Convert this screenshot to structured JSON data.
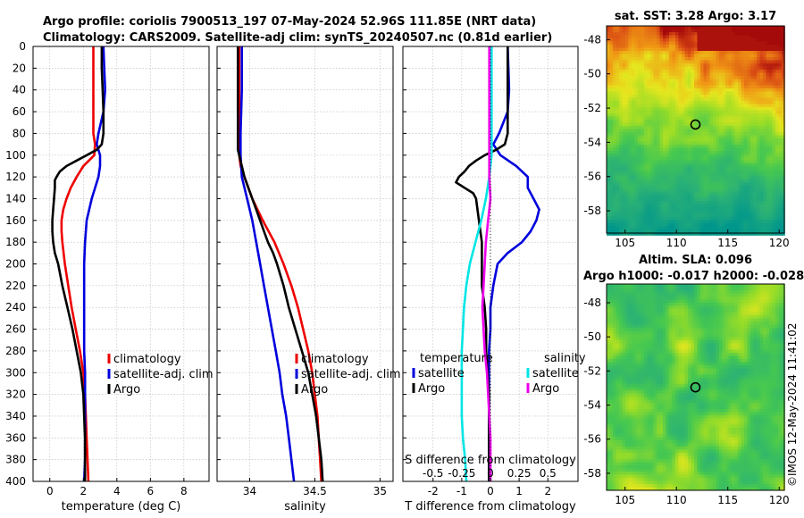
{
  "header": {
    "line1": "Argo profile: coriolis 7900513_197 07-May-2024 52.96S 111.85E (NRT data)",
    "line2": "Climatology: CARS2009. Satellite-adj clim: synTS_20240507.nc (0.81d earlier)"
  },
  "watermark": "©IMOS 12-May-2024 11:41:02",
  "colors": {
    "climatology": "#ee0000",
    "satellite": "#0000dd",
    "argo": "#000000",
    "sal_satellite": "#00e5e5",
    "sal_argo": "#ee00ee"
  },
  "chart_data": [
    {
      "id": "temperature",
      "type": "line",
      "xlabel": "temperature (deg C)",
      "ylabel": "",
      "xlim": [
        -1,
        9.5
      ],
      "ylim": [
        400,
        0
      ],
      "xticks": [
        0,
        2,
        4,
        6,
        8
      ],
      "xtick_labels": [
        "0",
        "2",
        "4",
        "6",
        "8"
      ],
      "yticks": [
        0,
        20,
        40,
        60,
        80,
        100,
        120,
        140,
        160,
        180,
        200,
        220,
        240,
        260,
        280,
        300,
        320,
        340,
        360,
        380,
        400
      ],
      "ytick_labels": [
        "0",
        "20",
        "40",
        "60",
        "80",
        "100",
        "120",
        "140",
        "160",
        "180",
        "200",
        "220",
        "240",
        "260",
        "280",
        "300",
        "320",
        "340",
        "360",
        "380",
        "400"
      ],
      "grid": true,
      "legend": [
        "climatology",
        "satellite-adj. clim",
        "Argo"
      ],
      "series": [
        {
          "name": "climatology",
          "color": "#ee0000",
          "depth": [
            0,
            20,
            40,
            60,
            80,
            90,
            100,
            110,
            120,
            130,
            140,
            150,
            160,
            170,
            180,
            200,
            220,
            240,
            260,
            280,
            300,
            320,
            340,
            360,
            380,
            400
          ],
          "values": [
            2.6,
            2.6,
            2.6,
            2.6,
            2.6,
            2.7,
            2.65,
            2.0,
            1.6,
            1.25,
            1.0,
            0.8,
            0.7,
            0.7,
            0.75,
            0.9,
            1.1,
            1.3,
            1.55,
            1.8,
            2.0,
            2.1,
            2.15,
            2.2,
            2.25,
            2.3
          ]
        },
        {
          "name": "satellite-adj. clim",
          "color": "#0000dd",
          "depth": [
            0,
            20,
            40,
            60,
            80,
            90,
            100,
            110,
            120,
            140,
            160,
            180,
            200,
            220,
            240,
            260,
            280,
            300,
            320,
            340,
            360,
            380,
            400
          ],
          "values": [
            3.2,
            3.25,
            3.3,
            3.2,
            2.9,
            2.8,
            3.0,
            3.0,
            2.9,
            2.5,
            2.2,
            2.1,
            2.05,
            2.05,
            2.05,
            2.05,
            2.05,
            2.1,
            2.1,
            2.1,
            2.1,
            2.1,
            2.05
          ]
        },
        {
          "name": "Argo",
          "color": "#000000",
          "depth": [
            0,
            20,
            40,
            60,
            80,
            90,
            95,
            100,
            105,
            110,
            115,
            120,
            123,
            130,
            140,
            150,
            160,
            170,
            180,
            190,
            200,
            220,
            240,
            260,
            280,
            300,
            320,
            340,
            360,
            380,
            400
          ],
          "values": [
            3.1,
            3.1,
            3.15,
            3.2,
            3.2,
            3.1,
            2.8,
            2.2,
            1.6,
            1.0,
            0.6,
            0.4,
            0.3,
            0.3,
            0.25,
            0.2,
            0.15,
            0.15,
            0.2,
            0.3,
            0.5,
            0.75,
            1.05,
            1.35,
            1.6,
            1.85,
            2.0,
            2.05,
            2.1,
            2.1,
            2.1
          ]
        }
      ]
    },
    {
      "id": "salinity",
      "type": "line",
      "xlabel": "salinity",
      "ylabel": "",
      "xlim": [
        33.75,
        35.1
      ],
      "ylim": [
        400,
        0
      ],
      "xticks": [
        34,
        34.5,
        35
      ],
      "xtick_labels": [
        "34",
        "34.5",
        "35"
      ],
      "grid": true,
      "legend": [
        "climatology",
        "satellite-adj. clim",
        "Argo"
      ],
      "series": [
        {
          "name": "climatology",
          "color": "#ee0000",
          "depth": [
            0,
            40,
            80,
            100,
            110,
            120,
            140,
            160,
            180,
            200,
            220,
            240,
            260,
            280,
            300,
            320,
            340,
            360,
            380,
            400
          ],
          "values": [
            33.92,
            33.92,
            33.92,
            33.92,
            33.93,
            33.96,
            34.02,
            34.1,
            34.19,
            34.26,
            34.32,
            34.37,
            34.41,
            34.45,
            34.48,
            34.5,
            34.52,
            34.53,
            34.54,
            34.55
          ]
        },
        {
          "name": "satellite-adj. clim",
          "color": "#0000dd",
          "depth": [
            0,
            40,
            80,
            100,
            120,
            140,
            160,
            180,
            200,
            220,
            240,
            260,
            280,
            300,
            320,
            340,
            360,
            380,
            400
          ],
          "values": [
            33.94,
            33.94,
            33.93,
            33.93,
            33.94,
            33.98,
            34.02,
            34.05,
            34.08,
            34.11,
            34.14,
            34.17,
            34.2,
            34.23,
            34.25,
            34.28,
            34.3,
            34.32,
            34.34
          ]
        },
        {
          "name": "Argo",
          "color": "#000000",
          "depth": [
            0,
            20,
            40,
            60,
            80,
            95,
            100,
            110,
            120,
            130,
            140,
            150,
            160,
            170,
            180,
            190,
            200,
            220,
            240,
            260,
            280,
            300,
            320,
            340,
            360,
            380,
            400
          ],
          "values": [
            33.91,
            33.91,
            33.91,
            33.91,
            33.91,
            33.91,
            33.92,
            33.94,
            33.96,
            33.99,
            34.02,
            34.05,
            34.08,
            34.11,
            34.14,
            34.18,
            34.21,
            34.26,
            34.3,
            34.35,
            34.4,
            34.45,
            34.48,
            34.51,
            34.53,
            34.55,
            34.56
          ]
        }
      ]
    },
    {
      "id": "difference",
      "type": "line",
      "xlabel": "T difference from climatology",
      "top_label": "S difference from climatology",
      "xlim": [
        -3.05,
        3.05
      ],
      "ylim": [
        400,
        0
      ],
      "xticks": [
        -2,
        -1,
        0,
        1,
        2
      ],
      "xtick_labels": [
        "-2",
        "-1",
        "0",
        "1",
        "2"
      ],
      "top_xticks": [
        -2,
        -1,
        0,
        1,
        2
      ],
      "top_xtick_labels": [
        "-0.5",
        "-0.25",
        "0",
        "0.25",
        "0.5"
      ],
      "grid": true,
      "legend_temperature": {
        "heading": "temperature",
        "items": [
          "satellite",
          "Argo"
        ]
      },
      "legend_salinity": {
        "heading": "salinity",
        "items": [
          "satellite",
          "Argo"
        ]
      },
      "series": [
        {
          "name": "temperature satellite",
          "color": "#0000dd",
          "depth": [
            0,
            40,
            60,
            80,
            90,
            100,
            110,
            120,
            130,
            140,
            150,
            160,
            170,
            180,
            190,
            200,
            220,
            240,
            260,
            280,
            300,
            320,
            340,
            360,
            380,
            400
          ],
          "values": [
            0.6,
            0.65,
            0.6,
            0.3,
            0.1,
            0.35,
            0.9,
            1.3,
            1.3,
            1.5,
            1.7,
            1.6,
            1.4,
            1.1,
            0.6,
            0.25,
            0.1,
            0.0,
            0.0,
            -0.05,
            -0.05,
            -0.05,
            -0.05,
            -0.05,
            -0.05,
            -0.05
          ]
        },
        {
          "name": "temperature Argo",
          "color": "#000000",
          "depth": [
            0,
            40,
            60,
            80,
            90,
            95,
            100,
            105,
            110,
            115,
            120,
            125,
            130,
            135,
            140,
            160,
            180,
            200,
            220,
            240,
            260,
            280,
            300,
            320,
            340,
            360,
            380,
            400
          ],
          "values": [
            0.6,
            0.6,
            0.6,
            0.6,
            0.5,
            0.2,
            -0.2,
            -0.5,
            -0.75,
            -0.9,
            -1.1,
            -1.2,
            -0.9,
            -0.6,
            -0.5,
            -0.4,
            -0.3,
            -0.3,
            -0.3,
            -0.2,
            -0.15,
            -0.15,
            -0.1,
            -0.05,
            -0.05,
            -0.05,
            -0.05,
            -0.05
          ]
        },
        {
          "name": "salinity satellite",
          "color": "#00e5e5",
          "depth": [
            0,
            40,
            80,
            100,
            120,
            140,
            160,
            180,
            200,
            220,
            240,
            260,
            280,
            300,
            320,
            340,
            360,
            380,
            400
          ],
          "values": [
            0.01,
            0.01,
            0.01,
            0.01,
            -0.01,
            -0.04,
            -0.08,
            -0.13,
            -0.18,
            -0.21,
            -0.23,
            -0.24,
            -0.25,
            -0.25,
            -0.25,
            -0.25,
            -0.24,
            -0.22,
            -0.21
          ]
        },
        {
          "name": "salinity Argo",
          "color": "#ee00ee",
          "depth": [
            0,
            40,
            80,
            100,
            120,
            140,
            160,
            180,
            200,
            220,
            240,
            260,
            280,
            300,
            320,
            340,
            360,
            380,
            400
          ],
          "values": [
            -0.01,
            -0.01,
            -0.01,
            -0.01,
            -0.01,
            0.0,
            -0.02,
            -0.04,
            -0.05,
            -0.06,
            -0.07,
            -0.06,
            -0.05,
            -0.03,
            -0.02,
            -0.01,
            0.0,
            0.0,
            0.0
          ]
        }
      ]
    },
    {
      "id": "sst-map",
      "type": "heatmap",
      "title": "sat. SST: 3.28 Argo: 3.17",
      "xlim": [
        103.2,
        120.5
      ],
      "ylim": [
        -59.3,
        -47.2
      ],
      "xticks": [
        105,
        110,
        115,
        120
      ],
      "xtick_labels": [
        "105",
        "110",
        "115",
        "120"
      ],
      "yticks": [
        -48,
        -50,
        -52,
        -54,
        -56,
        -58
      ],
      "ytick_labels": [
        "-48",
        "-50",
        "-52",
        "-54",
        "-56",
        "-58"
      ],
      "argo_position": {
        "lon": 111.85,
        "lat": -52.96
      }
    },
    {
      "id": "sla-map",
      "type": "heatmap",
      "title": "Altim. SLA: 0.096",
      "subtitle": "Argo h1000: -0.017 h2000: -0.028",
      "xlim": [
        103.2,
        120.5
      ],
      "ylim": [
        -59.0,
        -46.9
      ],
      "xticks": [
        105,
        110,
        115,
        120
      ],
      "xtick_labels": [
        "105",
        "110",
        "115",
        "120"
      ],
      "yticks": [
        -48,
        -50,
        -52,
        -54,
        -56,
        -58
      ],
      "ytick_labels": [
        "-48",
        "-50",
        "-52",
        "-54",
        "-56",
        "-58"
      ],
      "argo_position": {
        "lon": 111.85,
        "lat": -52.96
      }
    }
  ]
}
